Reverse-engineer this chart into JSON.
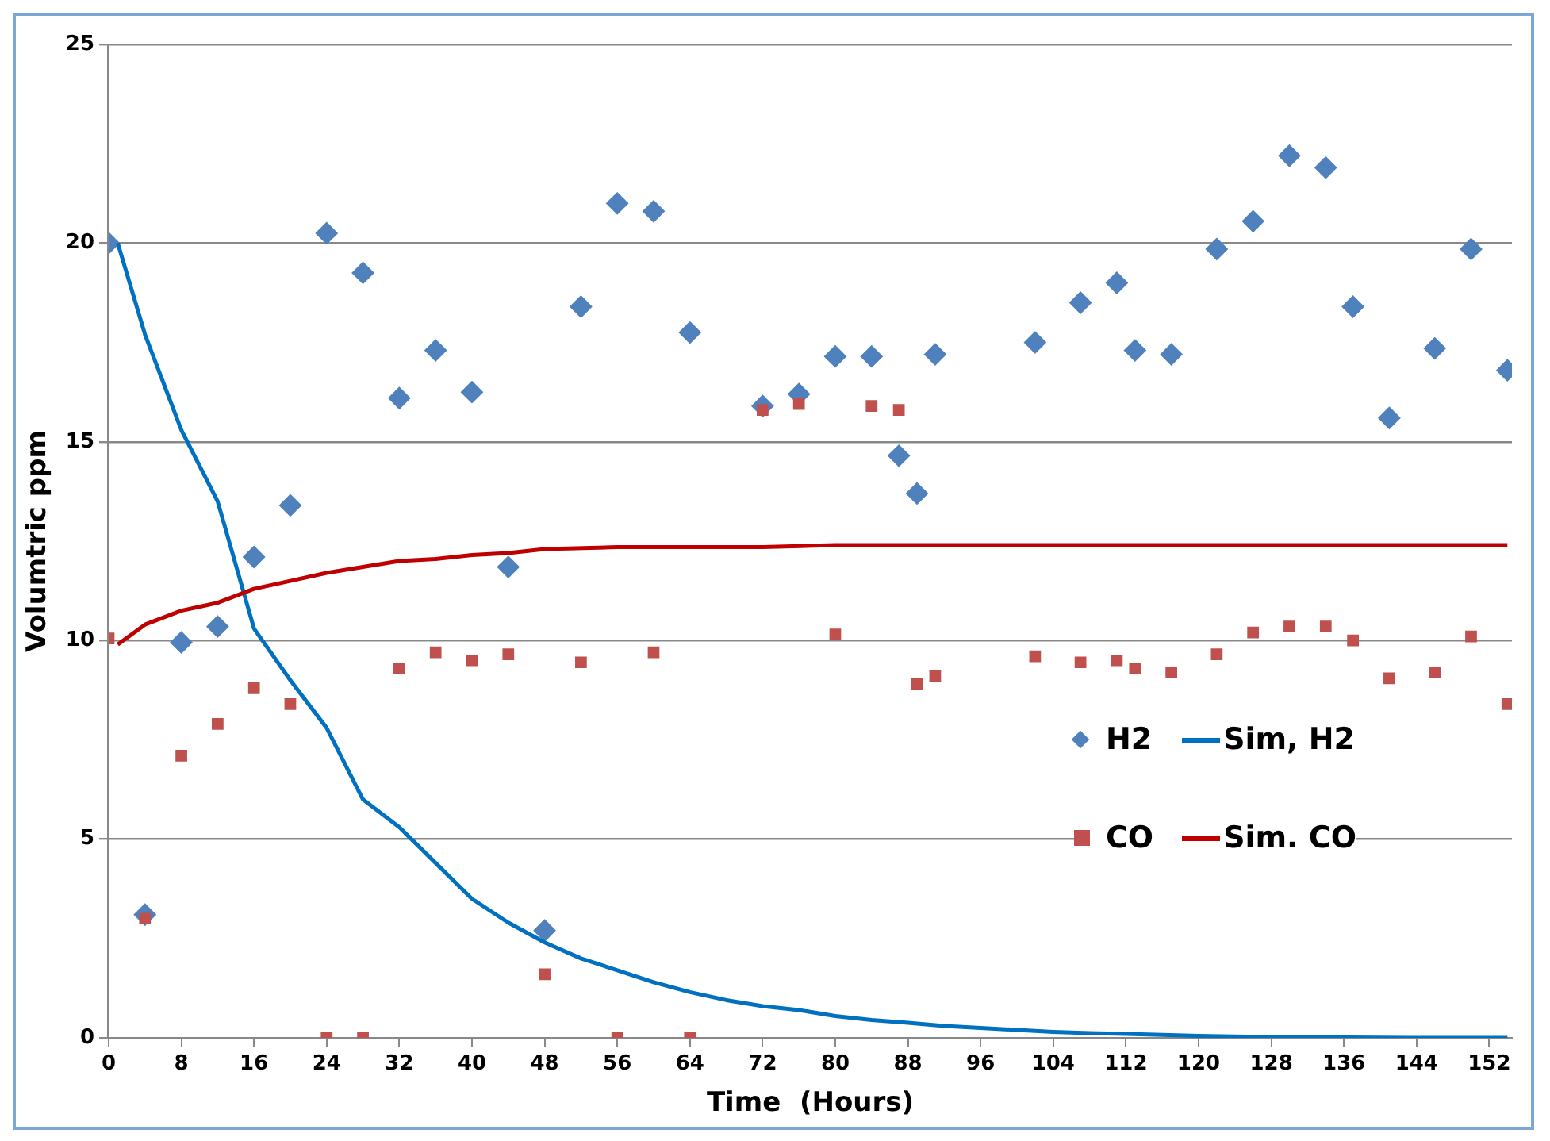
{
  "chart_data": {
    "type": "scatter",
    "xlabel": "Time  (Hours)",
    "ylabel": "Volumtric ppm",
    "xlim": [
      0,
      154.5
    ],
    "xticks": [
      0,
      8,
      16,
      24,
      32,
      40,
      48,
      56,
      64,
      72,
      80,
      88,
      96,
      104,
      112,
      120,
      128,
      136,
      144,
      152
    ],
    "ylim": [
      0,
      25
    ],
    "yticks": [
      0,
      5,
      10,
      15,
      20,
      25
    ],
    "grid": "y",
    "legend": "right",
    "series": [
      {
        "name": "H2",
        "marker": "diamond",
        "color": "#4f81bd",
        "x": [
          0,
          4,
          8,
          12,
          16,
          20,
          24,
          28,
          32,
          36,
          40,
          44,
          48,
          52,
          56,
          60,
          64,
          72,
          76,
          80,
          84,
          87,
          89,
          91,
          102,
          107,
          111,
          113,
          117,
          122,
          126,
          130,
          134,
          137,
          141,
          146,
          150,
          154
        ],
        "values": [
          20.0,
          3.1,
          9.95,
          10.35,
          12.1,
          13.4,
          20.25,
          19.25,
          16.1,
          17.3,
          16.25,
          11.85,
          2.7,
          18.4,
          21.0,
          20.8,
          17.75,
          15.9,
          16.2,
          17.15,
          17.15,
          14.65,
          13.7,
          17.2,
          17.5,
          18.5,
          19.0,
          17.3,
          17.2,
          19.85,
          20.55,
          22.2,
          21.9,
          18.4,
          15.6,
          17.35,
          19.85,
          16.8
        ]
      },
      {
        "name": "Sim, H2",
        "type": "line",
        "marker": "none",
        "color": "#0070c0",
        "x": [
          1,
          4,
          8,
          12,
          16,
          20,
          24,
          28,
          32,
          36,
          40,
          44,
          48,
          52,
          56,
          60,
          64,
          68,
          72,
          76,
          80,
          84,
          88,
          92,
          96,
          100,
          104,
          108,
          112,
          120,
          128,
          136,
          144,
          154
        ],
        "values": [
          20.0,
          17.7,
          15.3,
          13.5,
          10.3,
          9.0,
          7.8,
          6.0,
          5.3,
          4.4,
          3.5,
          2.9,
          2.4,
          2.0,
          1.7,
          1.4,
          1.15,
          0.95,
          0.8,
          0.7,
          0.55,
          0.45,
          0.38,
          0.3,
          0.25,
          0.2,
          0.15,
          0.12,
          0.1,
          0.05,
          0.02,
          0.01,
          0,
          0
        ]
      },
      {
        "name": "CO",
        "marker": "square",
        "color": "#c0504d",
        "x": [
          0,
          4,
          8,
          12,
          16,
          20,
          24,
          28,
          32,
          36,
          40,
          44,
          48,
          52,
          56,
          60,
          64,
          72,
          76,
          80,
          84,
          87,
          89,
          91,
          102,
          107,
          111,
          113,
          117,
          122,
          126,
          130,
          134,
          137,
          141,
          146,
          150,
          154
        ],
        "values": [
          10.05,
          3.0,
          7.1,
          7.9,
          8.8,
          8.4,
          0,
          0,
          9.3,
          9.7,
          9.5,
          9.65,
          1.6,
          9.45,
          0,
          9.7,
          0,
          15.8,
          15.95,
          10.15,
          15.9,
          15.8,
          8.9,
          9.1,
          9.6,
          9.45,
          9.5,
          9.3,
          9.2,
          9.65,
          10.2,
          10.35,
          10.35,
          10.0,
          9.05,
          9.2,
          10.1,
          8.4
        ]
      },
      {
        "name": "Sim. CO",
        "type": "line",
        "marker": "none",
        "color": "#c00000",
        "x": [
          1,
          4,
          8,
          12,
          16,
          20,
          24,
          28,
          32,
          36,
          40,
          44,
          48,
          56,
          64,
          72,
          80,
          96,
          112,
          128,
          144,
          154
        ],
        "values": [
          9.9,
          10.4,
          10.75,
          10.95,
          11.3,
          11.5,
          11.7,
          11.85,
          12.0,
          12.05,
          12.15,
          12.2,
          12.3,
          12.35,
          12.35,
          12.35,
          12.4,
          12.4,
          12.4,
          12.4,
          12.4,
          12.4
        ]
      }
    ]
  }
}
